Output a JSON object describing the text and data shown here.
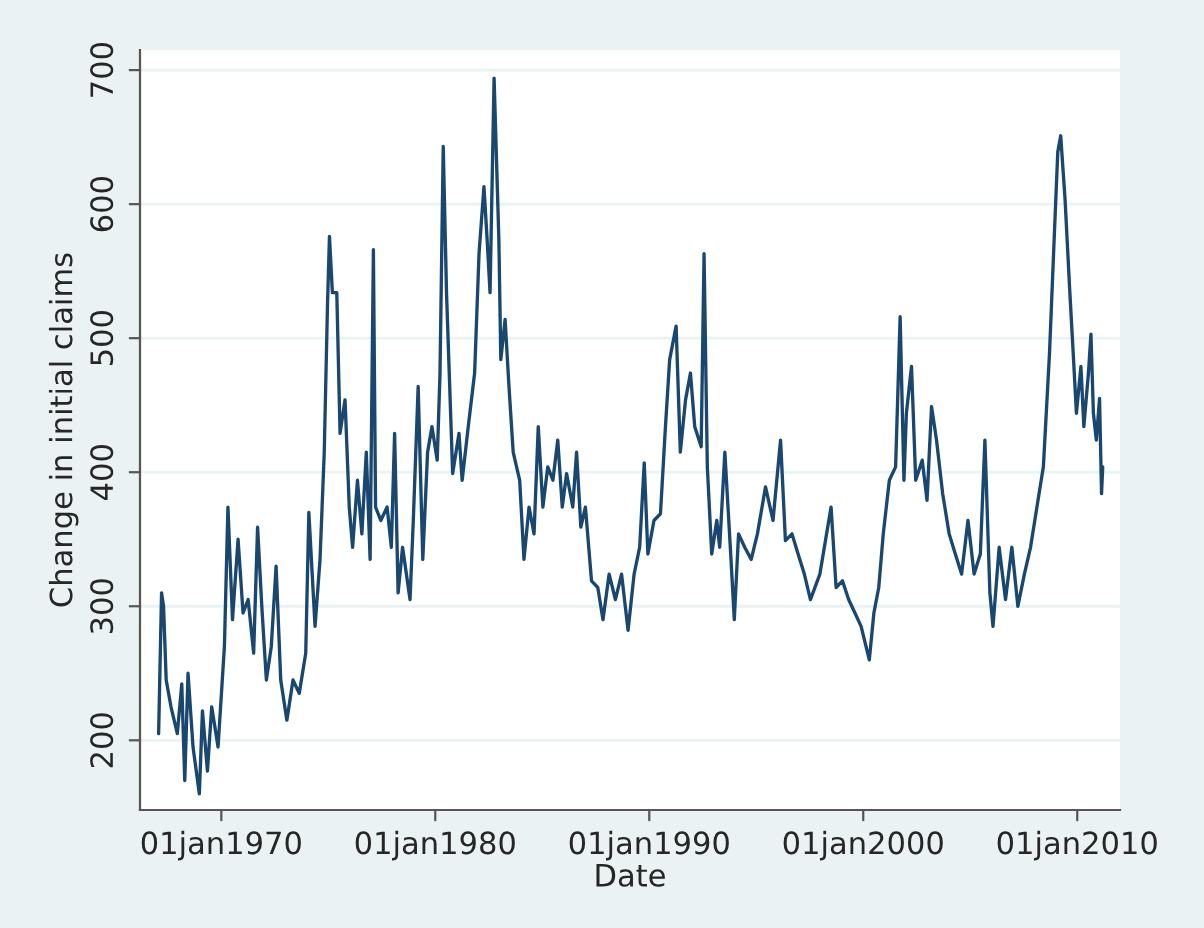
{
  "chart_data": {
    "type": "line",
    "xlabel": "Date",
    "ylabel": "Change in initial claims",
    "x": [
      "1967-01-27",
      "1967-03-18",
      "1967-04-21",
      "1967-06-05",
      "1967-08-26",
      "1967-12-12",
      "1968-02-26",
      "1968-04-17",
      "1968-06-12",
      "1968-09-05",
      "1968-12-22",
      "1969-02-13",
      "1969-05-09",
      "1969-07-21",
      "1969-11-06",
      "1970-02-23",
      "1970-04-24",
      "1970-07-11",
      "1970-10-14",
      "1971-01-07",
      "1971-04-04",
      "1971-07-07",
      "1971-09-12",
      "1971-11-23",
      "1972-02-09",
      "1972-05-03",
      "1972-07-24",
      "1972-10-11",
      "1973-01-24",
      "1973-05-09",
      "1973-08-23",
      "1973-12-12",
      "1974-02-03",
      "1974-05-20",
      "1974-08-13",
      "1974-10-24",
      "1974-12-18",
      "1975-01-21",
      "1975-03-12",
      "1975-05-26",
      "1975-07-21",
      "1975-10-14",
      "1975-12-25",
      "1976-02-20",
      "1976-05-13",
      "1976-07-27",
      "1976-10-11",
      "1976-12-15",
      "1977-02-09",
      "1977-03-18",
      "1977-06-15",
      "1977-10-01",
      "1977-12-12",
      "1978-02-06",
      "1978-04-07",
      "1978-06-22",
      "1978-10-27",
      "1978-12-22",
      "1979-03-15",
      "1979-06-02",
      "1979-08-23",
      "1979-11-06",
      "1980-02-03",
      "1980-03-22",
      "1980-05-16",
      "1980-07-11",
      "1980-10-24",
      "1981-02-09",
      "1981-04-04",
      "1981-07-17",
      "1981-11-03",
      "1982-01-17",
      "1982-04-11",
      "1982-06-05",
      "1982-07-24",
      "1982-10-01",
      "1982-12-22",
      "1983-01-24",
      "1983-04-07",
      "1983-06-12",
      "1983-08-23",
      "1983-12-12",
      "1984-02-23",
      "1984-05-20",
      "1984-08-13",
      "1984-10-24",
      "1985-01-11",
      "1985-04-04",
      "1985-07-01",
      "1985-09-22",
      "1985-12-08",
      "1986-02-20",
      "1986-06-05",
      "1986-08-09",
      "1986-10-21",
      "1987-01-07",
      "1987-04-21",
      "1987-08-06",
      "1987-11-03",
      "1988-02-16",
      "1988-06-02",
      "1988-09-15",
      "1989-01-04",
      "1989-04-17",
      "1989-07-21",
      "1989-10-07",
      "1989-12-08",
      "1990-03-22",
      "1990-07-11",
      "1990-10-04",
      "1990-12-15",
      "1991-04-04",
      "1991-06-15",
      "1991-09-12",
      "1991-12-05",
      "1992-02-16",
      "1992-06-05",
      "1992-07-24",
      "1992-09-18",
      "1992-12-02",
      "1993-02-26",
      "1993-04-17",
      "1993-07-14",
      "1993-10-27",
      "1993-12-22",
      "1994-03-05",
      "1994-06-18",
      "1994-10-07",
      "1995-01-21",
      "1995-06-08",
      "1995-10-14",
      "1996-02-20",
      "1996-05-13",
      "1996-09-02",
      "1996-12-15",
      "1997-04-01",
      "1997-07-14",
      "1997-12-22",
      "1998-07-01",
      "1998-09-25",
      "1999-01-11",
      "1999-04-27",
      "1999-08-13",
      "1999-11-26",
      "2000-04-14",
      "2000-07-01",
      "2000-09-22",
      "2000-12-08",
      "2001-03-22",
      "2001-07-07",
      "2001-09-22",
      "2001-11-26",
      "2002-01-07",
      "2002-04-04",
      "2002-06-15",
      "2002-10-04",
      "2002-12-25",
      "2003-03-12",
      "2003-06-05",
      "2003-09-18",
      "2004-01-07",
      "2004-04-21",
      "2004-08-06",
      "2004-11-23",
      "2005-03-08",
      "2005-06-22",
      "2005-09-08",
      "2005-12-02",
      "2006-01-24",
      "2006-05-09",
      "2006-08-26",
      "2006-12-12",
      "2007-03-25",
      "2007-07-14",
      "2007-10-27",
      "2008-02-13",
      "2008-06-02",
      "2008-09-15",
      "2008-12-08",
      "2009-02-03",
      "2009-03-25",
      "2009-06-08",
      "2009-08-23",
      "2009-10-24",
      "2009-12-18",
      "2010-03-05",
      "2010-04-24",
      "2010-07-11",
      "2010-08-23",
      "2010-10-04",
      "2010-11-23",
      "2011-01-17",
      "2011-02-20",
      "2011-03-12"
    ],
    "series": [
      {
        "color": "#1a476f",
        "values": [
          205,
          310,
          300,
          245,
          225,
          205,
          242,
          170,
          250,
          195,
          160,
          222,
          177,
          225,
          195,
          270,
          374,
          290,
          350,
          295,
          305,
          265,
          359,
          300,
          245,
          270,
          330,
          245,
          215,
          245,
          235,
          265,
          370,
          285,
          335,
          415,
          524,
          576,
          534,
          534,
          429,
          454,
          374,
          344,
          394,
          354,
          415,
          335,
          566,
          374,
          364,
          374,
          344,
          429,
          310,
          344,
          305,
          364,
          464,
          335,
          415,
          434,
          409,
          474,
          643,
          534,
          399,
          429,
          394,
          434,
          474,
          563,
          613,
          573,
          534,
          694,
          573,
          484,
          514,
          464,
          415,
          394,
          335,
          374,
          354,
          434,
          374,
          404,
          394,
          424,
          374,
          399,
          374,
          415,
          359,
          374,
          319,
          314,
          290,
          324,
          305,
          324,
          282,
          324,
          344,
          407,
          339,
          364,
          369,
          434,
          484,
          509,
          415,
          454,
          474,
          434,
          419,
          563,
          404,
          339,
          364,
          344,
          415,
          335,
          290,
          354,
          344,
          335,
          354,
          389,
          364,
          424,
          349,
          354,
          339,
          324,
          305,
          324,
          374,
          314,
          319,
          305,
          295,
          285,
          260,
          295,
          314,
          354,
          394,
          404,
          516,
          394,
          444,
          479,
          394,
          409,
          379,
          449,
          424,
          384,
          354,
          339,
          324,
          364,
          324,
          339,
          424,
          310,
          285,
          344,
          305,
          344,
          300,
          324,
          344,
          374,
          404,
          489,
          579,
          639,
          651,
          603,
          538,
          489,
          444,
          479,
          434,
          474,
          503,
          444,
          424,
          455,
          384,
          404
        ]
      }
    ],
    "xlim": [
      "1966-03-15",
      "2012-01-01"
    ],
    "xticks": [
      {
        "value": "1970-01-01",
        "label": "01jan1970"
      },
      {
        "value": "1980-01-01",
        "label": "01jan1980"
      },
      {
        "value": "1990-01-01",
        "label": "01jan1990"
      },
      {
        "value": "2000-01-01",
        "label": "01jan2000"
      },
      {
        "value": "2010-01-01",
        "label": "01jan2010"
      }
    ],
    "ylim": [
      148,
      715
    ],
    "yticks": [
      200,
      300,
      400,
      500,
      600,
      700
    ],
    "grid": "y"
  }
}
